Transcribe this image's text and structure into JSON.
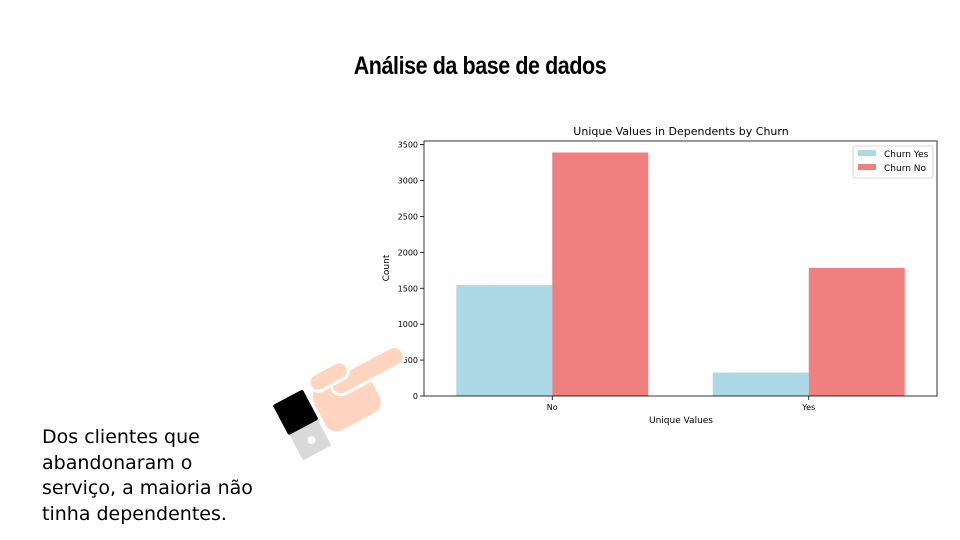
{
  "slide": {
    "title": "Análise da base de dados",
    "caption": "Dos clientes que\nabandonaram  o\nserviço, a maioria não\ntinha dependentes."
  },
  "chart_data": {
    "type": "bar",
    "title": "Unique Values in Dependents by Churn",
    "xlabel": "Unique Values",
    "ylabel": "Count",
    "categories": [
      "No",
      "Yes"
    ],
    "ylim": [
      0,
      3550
    ],
    "yticks": [
      0,
      500,
      1000,
      1500,
      2000,
      2500,
      3000,
      3500
    ],
    "grid": false,
    "legend_position": "top-right",
    "series": [
      {
        "name": "Churn Yes",
        "color": "#add8e6",
        "values": [
          1543,
          326
        ]
      },
      {
        "name": "Churn No",
        "color": "#f08080",
        "values": [
          3390,
          1784
        ]
      }
    ]
  },
  "illustration": {
    "icon": "pointing-hand-icon"
  }
}
